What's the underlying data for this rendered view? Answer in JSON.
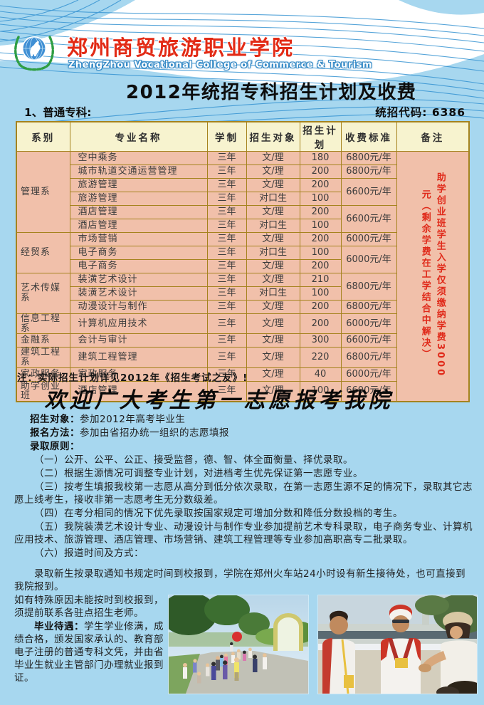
{
  "header": {
    "college_name_cn": "郑州商贸旅游职业学院",
    "college_name_en": "ZhengZhou Vocational College of Commerce & Tourism",
    "logo_icon": "college-emblem-icon",
    "title": "2012年统招专科招生计划及收费",
    "section_label": "1、普通专科:",
    "code_label": "统招代码: 6386"
  },
  "table": {
    "headers": [
      "系别",
      "专业名称",
      "学制",
      "招生对象",
      "招生计划",
      "收费标准",
      "备注"
    ],
    "remark": "助学创业班学生入学仅须缴纳学费3000元（剩余学费在工学结合中解决）",
    "rows": [
      {
        "dept": "管理系",
        "dept_rowspan": 6,
        "major": "空中乘务",
        "years": "三年",
        "target": "文/理",
        "plan": "180",
        "fee": "6800元/年",
        "fee_rowspan": 1
      },
      {
        "major": "城市轨道交通运营管理",
        "years": "三年",
        "target": "文/理",
        "plan": "200",
        "fee": "6800元/年",
        "fee_rowspan": 1
      },
      {
        "major": "旅游管理",
        "years": "三年",
        "target": "文/理",
        "plan": "200",
        "fee": "6600元/年",
        "fee_rowspan": 2
      },
      {
        "major": "旅游管理",
        "years": "三年",
        "target": "对口生",
        "plan": "100"
      },
      {
        "major": "酒店管理",
        "years": "三年",
        "target": "文/理",
        "plan": "200",
        "fee": "6600元/年",
        "fee_rowspan": 2
      },
      {
        "major": "酒店管理",
        "years": "三年",
        "target": "对口生",
        "plan": "100"
      },
      {
        "dept": "经贸系",
        "dept_rowspan": 3,
        "major": "市场营销",
        "years": "三年",
        "target": "文/理",
        "plan": "200",
        "fee": "6000元/年",
        "fee_rowspan": 1
      },
      {
        "major": "电子商务",
        "years": "三年",
        "target": "对口生",
        "plan": "100",
        "fee": "6000元/年",
        "fee_rowspan": 2
      },
      {
        "major": "电子商务",
        "years": "三年",
        "target": "文/理",
        "plan": "200"
      },
      {
        "dept": "艺术传媒系",
        "dept_rowspan": 3,
        "major": "装潢艺术设计",
        "years": "三年",
        "target": "文/理",
        "plan": "210",
        "fee": "6800元/年",
        "fee_rowspan": 2
      },
      {
        "major": "装潢艺术设计",
        "years": "三年",
        "target": "对口生",
        "plan": "100"
      },
      {
        "major": "动漫设计与制作",
        "years": "三年",
        "target": "文/理",
        "plan": "200",
        "fee": "6800元/年",
        "fee_rowspan": 1
      },
      {
        "dept": "信息工程系",
        "dept_rowspan": 1,
        "major": "计算机应用技术",
        "years": "三年",
        "target": "文/理",
        "plan": "200",
        "fee": "6000元/年",
        "fee_rowspan": 1
      },
      {
        "dept": "金融系",
        "dept_rowspan": 1,
        "major": "会计与审计",
        "years": "三年",
        "target": "文/理",
        "plan": "300",
        "fee": "6600元/年",
        "fee_rowspan": 1
      },
      {
        "dept": "建筑工程系",
        "dept_rowspan": 1,
        "major": "建筑工程管理",
        "years": "三年",
        "target": "文/理",
        "plan": "220",
        "fee": "6800元/年",
        "fee_rowspan": 1
      },
      {
        "dept": "家政服务",
        "dept_rowspan": 1,
        "major": "家政服务",
        "years": "三年",
        "target": "文/理",
        "plan": "40",
        "fee": "6000元/年",
        "fee_rowspan": 1
      },
      {
        "dept": "助学创业班",
        "dept_rowspan": 1,
        "major": "酒店管理",
        "years": "三年",
        "target": "文/理",
        "plan": "100",
        "fee": "6600元/年",
        "fee_rowspan": 1
      }
    ]
  },
  "note": "注：实际招生计划详见2012年《招生考试之友》!",
  "welcome": "欢迎广大考生第一志愿报考我院",
  "info": {
    "target_label": "招生对象：",
    "target_value": "参加2012年高考毕业生",
    "method_label": "报名方法：",
    "method_value": "参加由省招办统一组织的志愿填报",
    "principles_label": "录取原则：",
    "principles": [
      "（一）公开、公平、公正、接受监督，德、智、体全面衡量、择优录取。",
      "（二）根据生源情况可调整专业计划，对进档考生优先保证第一志愿专业。",
      "（三）按考生填报我校第一志愿从高分到低分依次录取，在第一志愿生源不足的情况下，录取其它志愿上线考生，接收非第一志愿考生无分数级差。",
      "（四）在考分相同的情况下优先录取按国家规定可增加分数和降低分数投档的考生。",
      "（五）我院装潢艺术设计专业、动漫设计与制作专业参加提前艺术专科录取，电子商务专业、计算机应用技术、旅游管理、酒店管理、市场营销、建筑工程管理等专业参加高职高专二批录取。",
      "（六）报道时间及方式："
    ],
    "report_para": "录取新生按录取通知书规定时间到校报到，学院在郑州火车站24小时设有新生接待处，也可直接到我院报到。",
    "report_para2": "如有特殊原因未能按时到校报到，须提前联系各驻点招生老师。",
    "grad_label": "毕业待遇：",
    "grad_text": "学生学业修满，成绩合格，颁发国家承认的、教育部电子注册的普通专科文凭，并由省毕业生就业主管部门办理就业报到证。"
  },
  "photos": [
    {
      "name": "campus-tour-photo"
    },
    {
      "name": "athletes-photo"
    }
  ],
  "colors": {
    "page_bg": "#a7d7ef",
    "wave_line": "#2e8fd0",
    "table_header_bg": "#f7f3cf",
    "table_cell_bg": "#f1c0aa",
    "table_border": "#a5831e",
    "remark_red": "#e02a1a",
    "college_red": "#e22a15",
    "text_dark": "#1f1f1f"
  }
}
